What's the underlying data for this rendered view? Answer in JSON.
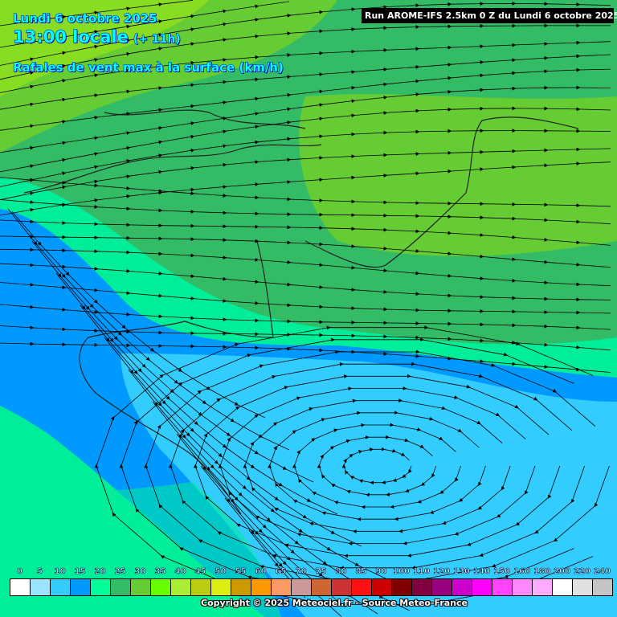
{
  "header": {
    "date": "Lundi 6 octobre 2025",
    "time": "13:00 locale",
    "offset": "(+ 11h)",
    "parameter": "Rafales de vent max à la surface (km/h)",
    "run": "Run AROME-IFS 2.5km 0 Z du Lundi 6 octobre 2025"
  },
  "legend": {
    "labels": [
      "0",
      "5",
      "10",
      "15",
      "20",
      "25",
      "30",
      "35",
      "40",
      "45",
      "50",
      "55",
      "60",
      "65",
      "70",
      "75",
      "80",
      "85",
      "90",
      "100",
      "110",
      "120",
      "130",
      "140",
      "150",
      "160",
      "180",
      "200",
      "220",
      "240"
    ],
    "colors": [
      "#ffffff",
      "#99e5ff",
      "#33ccff",
      "#0099ff",
      "#00ff99",
      "#33bb66",
      "#66cc33",
      "#66ff00",
      "#aaee33",
      "#bbcc11",
      "#ddee11",
      "#cc9900",
      "#ff9900",
      "#ff9966",
      "#cc9999",
      "#cc6633",
      "#cc3333",
      "#ff1111",
      "#cc0000",
      "#800000",
      "#800040",
      "#990080",
      "#cc00cc",
      "#ff00ff",
      "#ff44ff",
      "#ff88ff",
      "#ffaaff",
      "#ffffff",
      "#e0e0e0",
      "#c4c4c4"
    ]
  },
  "footer": {
    "copyright": "Copyright © 2025 Meteociel.fr - Source Meteo-France"
  }
}
